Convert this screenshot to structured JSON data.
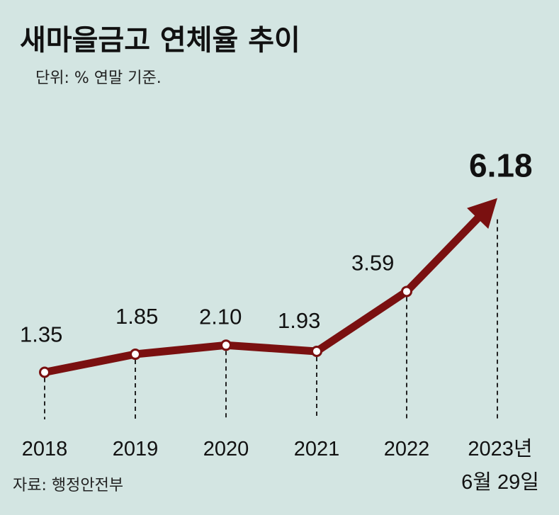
{
  "chart_data": {
    "type": "line",
    "title": "새마을금고 연체율 추이",
    "subtitle": "단위: % 연말 기준.",
    "x": [
      "2018",
      "2019",
      "2020",
      "2021",
      "2022",
      "2023년 6월 29일"
    ],
    "x_tick_lines": [
      [
        "2018"
      ],
      [
        "2019"
      ],
      [
        "2020"
      ],
      [
        "2021"
      ],
      [
        "2022"
      ],
      [
        "2023년",
        "6월 29일"
      ]
    ],
    "values": [
      1.35,
      1.85,
      2.1,
      1.93,
      3.59,
      6.18
    ],
    "data_labels": [
      "1.35",
      "1.85",
      "2.10",
      "1.93",
      "3.59",
      "6.18"
    ],
    "highlight_last": true,
    "last_point_arrow": true,
    "source": "자료: 행정안전부",
    "ylim": [
      0,
      7
    ],
    "grid": false,
    "colors": {
      "background": "#d3e5e2",
      "line": "#7a1010",
      "point_fill": "#ffffff",
      "text": "#111111"
    }
  }
}
